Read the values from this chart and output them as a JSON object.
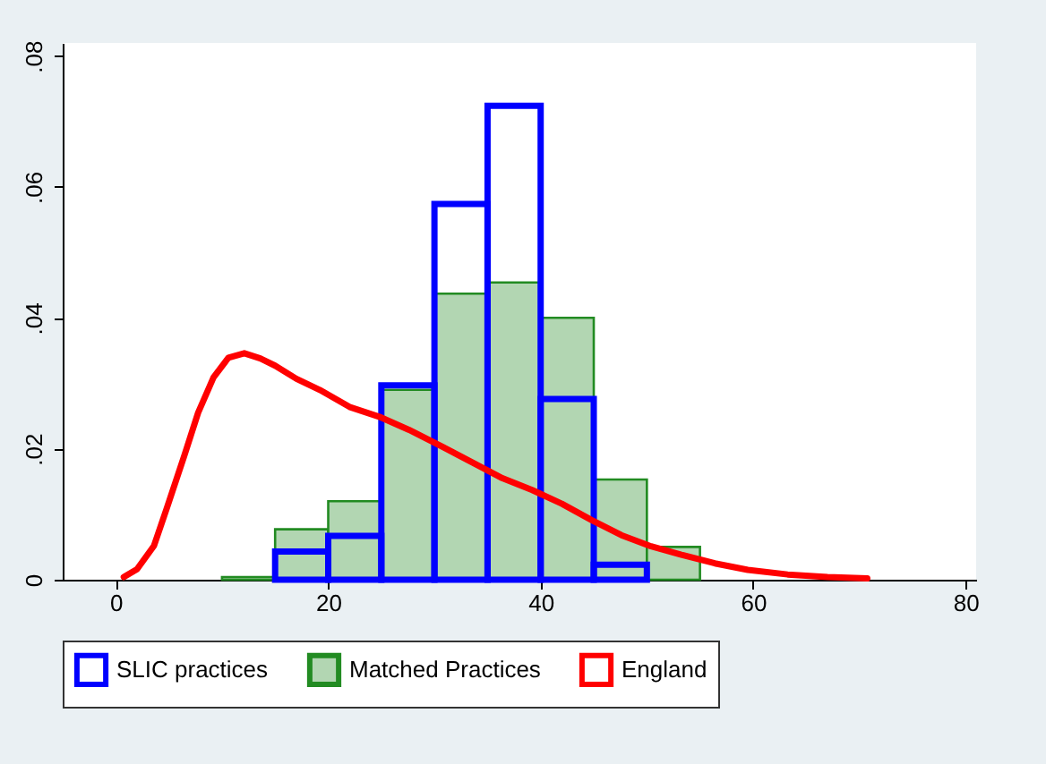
{
  "chart_data": {
    "type": "histogram",
    "bins": [
      10,
      15,
      20,
      25,
      30,
      35,
      40,
      45,
      50,
      55
    ],
    "series": [
      {
        "name": "SLIC practices",
        "type": "histogram",
        "color": "#0000ff",
        "values": [
          null,
          0.0043,
          0.0067,
          0.0297,
          0.0574,
          0.0724,
          0.0276,
          0.0023,
          null
        ]
      },
      {
        "name": "Matched Practices",
        "type": "histogram",
        "color": "#228b22",
        "values": [
          0.0004,
          0.0077,
          0.012,
          0.029,
          0.0437,
          0.0454,
          0.04,
          0.0153,
          0.005
        ]
      },
      {
        "name": "England",
        "type": "line",
        "color": "#ff0000",
        "x": [
          0.75,
          2.0,
          3.6,
          4.8,
          6.4,
          7.75,
          9.2,
          10.6,
          12.1,
          13.6,
          15.0,
          17.0,
          19.2,
          22.0,
          24.8,
          27.6,
          30.75,
          33.6,
          36.4,
          39.2,
          42.0,
          44.8,
          47.6,
          50.4,
          53.25,
          56.4,
          59.5,
          63.25,
          67.0,
          70.75
        ],
        "values": [
          0.0004,
          0.0016,
          0.0052,
          0.0109,
          0.0187,
          0.0255,
          0.0309,
          0.0339,
          0.0346,
          0.0338,
          0.0327,
          0.0307,
          0.029,
          0.0264,
          0.0249,
          0.0229,
          0.0203,
          0.0179,
          0.0155,
          0.0137,
          0.0116,
          0.0091,
          0.0068,
          0.0051,
          0.0038,
          0.0025,
          0.0015,
          0.0008,
          0.0004,
          0.0002
        ]
      }
    ],
    "xlim": [
      -5,
      81
    ],
    "xticks": [
      0,
      20,
      40,
      60,
      80
    ],
    "ylim": [
      0,
      0.082
    ],
    "yticks": [
      0,
      {
        "value": 0.02,
        "label": ".02"
      },
      {
        "value": 0.04,
        "label": ".04"
      },
      {
        "value": 0.06,
        "label": ".06"
      },
      {
        "value": 0.08,
        "label": ".08"
      }
    ],
    "legend": "bottom",
    "grid": false
  }
}
